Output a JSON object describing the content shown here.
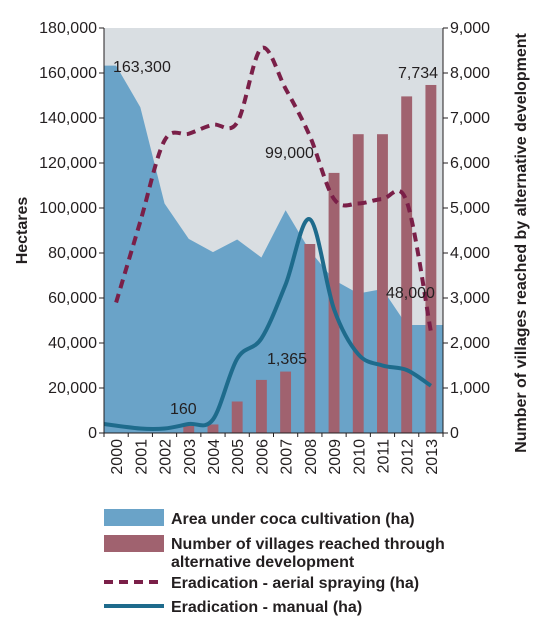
{
  "chart_data": {
    "type": "combo",
    "x": [
      "2000",
      "2001",
      "2002",
      "2003",
      "2004",
      "2005",
      "2006",
      "2007",
      "2008",
      "2009",
      "2010",
      "2011",
      "2012",
      "2013"
    ],
    "ylabel_left": "Hectares",
    "ylabel_right": "Number of villages  reached by alternative development",
    "ylim_left": [
      0,
      180000
    ],
    "ylim_right": [
      0,
      9000
    ],
    "yticks_left": [
      "0",
      "20,000",
      "40,000",
      "60,000",
      "80,000",
      "100,000",
      "120,000",
      "140,000",
      "160,000",
      "180,000"
    ],
    "yticks_right": [
      "0",
      "1,000",
      "2,000",
      "3,000",
      "4,000",
      "5,000",
      "6,000",
      "7,000",
      "8,000",
      "9,000"
    ],
    "grid": false,
    "series": [
      {
        "name": "Area under coca cultivation (ha)",
        "type": "area",
        "axis": "left",
        "color": "#6aa3c8",
        "values": [
          163300,
          144800,
          102000,
          86300,
          80400,
          86000,
          78000,
          99000,
          81000,
          68000,
          62000,
          64000,
          48000,
          48000
        ]
      },
      {
        "name": "Number of villages reached through alternative development",
        "type": "bar",
        "axis": "right",
        "color": "#a0626f",
        "values": [
          0,
          0,
          0,
          160,
          190,
          700,
          1180,
          1365,
          4200,
          5780,
          6640,
          6640,
          7480,
          7734
        ]
      },
      {
        "name": "Eradication - aerial spraying (ha)",
        "type": "line",
        "style": "dashed",
        "axis": "left",
        "color": "#7a1f48",
        "values": [
          58000,
          94000,
          130000,
          133000,
          137000,
          138000,
          171000,
          153000,
          132000,
          104000,
          102000,
          104000,
          103000,
          45000
        ]
      },
      {
        "name": "Eradication - manual (ha)",
        "type": "line",
        "style": "solid",
        "axis": "left",
        "color": "#1e6b8c",
        "values": [
          4000,
          2000,
          2000,
          4000,
          6000,
          33000,
          42000,
          66000,
          95000,
          55000,
          35000,
          30000,
          28000,
          21000
        ]
      }
    ],
    "annotations": [
      {
        "text": "163,300",
        "x": "2000"
      },
      {
        "text": "160",
        "x": "2003"
      },
      {
        "text": "1,365",
        "x": "2007"
      },
      {
        "text": "99,000",
        "x": "2008"
      },
      {
        "text": "48,000",
        "x": "2012"
      },
      {
        "text": "7,734",
        "x": "2013"
      }
    ],
    "legend_placement": "bottom",
    "plot_background": "#d9dee2"
  }
}
